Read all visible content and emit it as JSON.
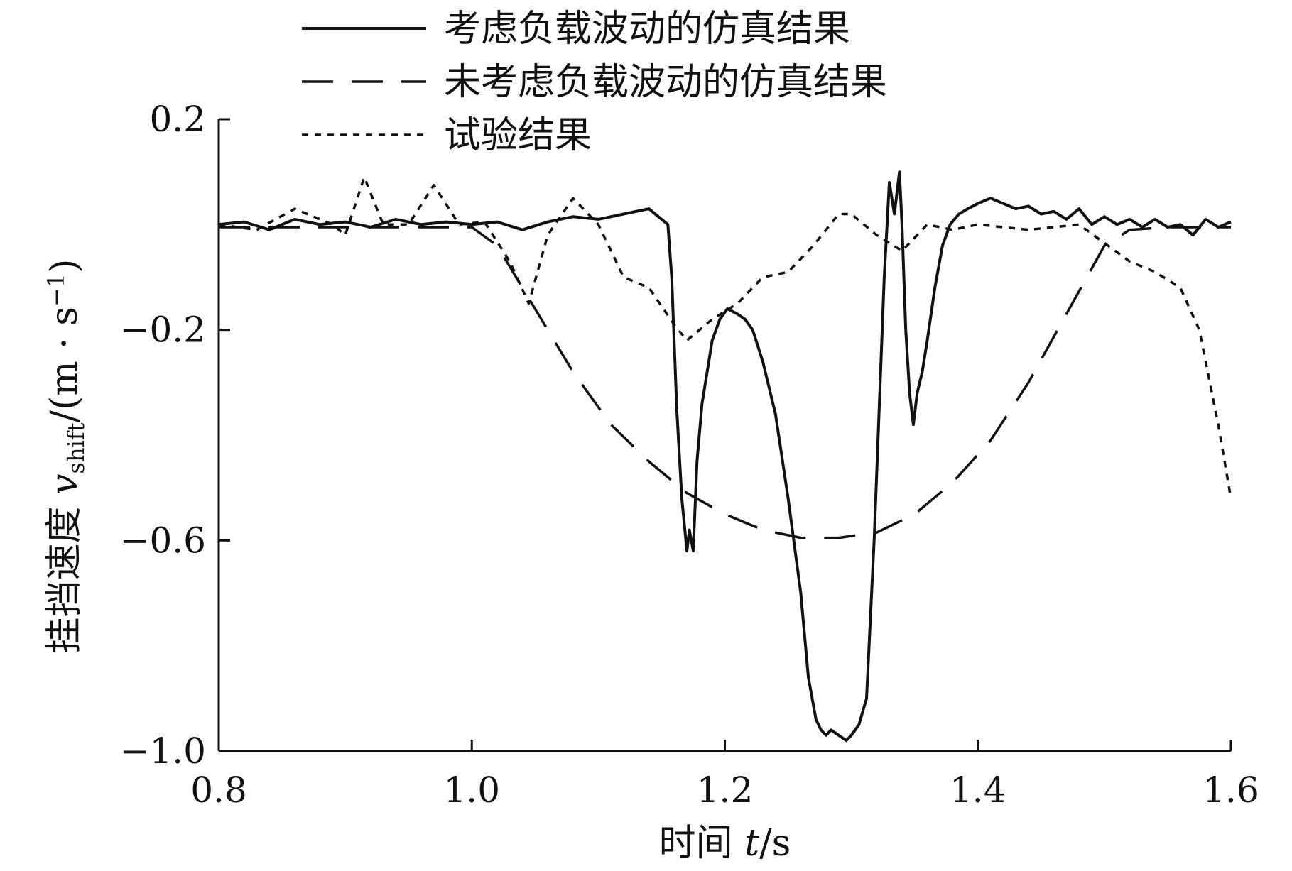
{
  "chart_data": {
    "type": "line",
    "title": "",
    "xlabel_prefix": "时间 ",
    "xlabel_var": "t",
    "xlabel_unit": "/s",
    "ylabel_prefix": "挂挡速度 ",
    "ylabel_var": "v",
    "ylabel_sub": "shift",
    "ylabel_unit": "/(m · s",
    "ylabel_sup": "−1",
    "ylabel_close": ")",
    "xlim": [
      0.8,
      1.6
    ],
    "ylim": [
      -1.0,
      0.2
    ],
    "xticks": [
      0.8,
      1.0,
      1.2,
      1.4,
      1.6
    ],
    "xtick_labels": [
      "0.8",
      "1.0",
      "1.2",
      "1.4",
      "1.6"
    ],
    "yticks": [
      0.2,
      -0.2,
      -0.6,
      -1.0
    ],
    "ytick_labels": [
      "0.2",
      "−0.2",
      "−0.6",
      "−1.0"
    ],
    "grid": false,
    "legend_position": "top",
    "series": [
      {
        "name": "考虑负载波动的仿真结果",
        "style": "solid",
        "x": [
          0.8,
          0.82,
          0.84,
          0.86,
          0.88,
          0.9,
          0.92,
          0.94,
          0.96,
          0.98,
          1.0,
          1.02,
          1.04,
          1.06,
          1.08,
          1.1,
          1.12,
          1.14,
          1.155,
          1.158,
          1.162,
          1.166,
          1.17,
          1.172,
          1.175,
          1.178,
          1.182,
          1.186,
          1.19,
          1.196,
          1.202,
          1.21,
          1.216,
          1.222,
          1.23,
          1.24,
          1.25,
          1.26,
          1.266,
          1.272,
          1.276,
          1.28,
          1.284,
          1.29,
          1.296,
          1.3,
          1.306,
          1.312,
          1.318,
          1.322,
          1.326,
          1.33,
          1.334,
          1.338,
          1.34,
          1.343,
          1.346,
          1.349,
          1.352,
          1.356,
          1.36,
          1.366,
          1.372,
          1.378,
          1.385,
          1.392,
          1.4,
          1.41,
          1.42,
          1.43,
          1.44,
          1.45,
          1.46,
          1.47,
          1.48,
          1.49,
          1.5,
          1.51,
          1.52,
          1.53,
          1.54,
          1.55,
          1.56,
          1.57,
          1.58,
          1.59,
          1.6
        ],
        "y": [
          0.0,
          0.005,
          -0.01,
          0.01,
          0.0,
          0.005,
          -0.005,
          0.01,
          0.0,
          0.005,
          0.0,
          0.005,
          -0.01,
          0.005,
          0.015,
          0.01,
          0.02,
          0.03,
          0.0,
          -0.1,
          -0.35,
          -0.52,
          -0.62,
          -0.58,
          -0.62,
          -0.45,
          -0.34,
          -0.28,
          -0.22,
          -0.18,
          -0.16,
          -0.17,
          -0.18,
          -0.2,
          -0.26,
          -0.36,
          -0.52,
          -0.7,
          -0.86,
          -0.94,
          -0.96,
          -0.97,
          -0.96,
          -0.97,
          -0.98,
          -0.97,
          -0.95,
          -0.9,
          -0.6,
          -0.35,
          -0.1,
          0.08,
          0.02,
          0.1,
          0.0,
          -0.2,
          -0.32,
          -0.38,
          -0.32,
          -0.28,
          -0.22,
          -0.12,
          -0.04,
          0.0,
          0.02,
          0.03,
          0.04,
          0.05,
          0.04,
          0.03,
          0.035,
          0.02,
          0.025,
          0.01,
          0.03,
          0.0,
          0.015,
          0.0,
          0.01,
          -0.005,
          0.01,
          -0.005,
          0.0,
          -0.02,
          0.01,
          -0.005,
          0.005
        ]
      },
      {
        "name": "未考虑负载波动的仿真结果",
        "style": "dashed",
        "x": [
          0.8,
          0.85,
          0.9,
          0.95,
          1.0,
          1.02,
          1.05,
          1.08,
          1.11,
          1.14,
          1.17,
          1.2,
          1.23,
          1.26,
          1.29,
          1.32,
          1.35,
          1.38,
          1.41,
          1.44,
          1.47,
          1.5,
          1.52,
          1.55,
          1.6
        ],
        "y": [
          -0.005,
          -0.005,
          -0.005,
          -0.005,
          -0.005,
          -0.04,
          -0.16,
          -0.28,
          -0.38,
          -0.45,
          -0.51,
          -0.55,
          -0.58,
          -0.595,
          -0.595,
          -0.585,
          -0.55,
          -0.49,
          -0.41,
          -0.3,
          -0.17,
          -0.04,
          -0.01,
          -0.005,
          -0.005
        ]
      },
      {
        "name": "试验结果",
        "style": "dotted",
        "x": [
          0.8,
          0.83,
          0.86,
          0.89,
          0.9,
          0.915,
          0.93,
          0.95,
          0.97,
          0.99,
          1.01,
          1.03,
          1.045,
          1.06,
          1.08,
          1.1,
          1.12,
          1.14,
          1.16,
          1.17,
          1.19,
          1.21,
          1.23,
          1.25,
          1.27,
          1.29,
          1.3,
          1.32,
          1.34,
          1.36,
          1.38,
          1.4,
          1.44,
          1.48,
          1.52,
          1.54,
          1.56,
          1.575,
          1.59,
          1.6
        ],
        "y": [
          0.0,
          -0.01,
          0.03,
          0.0,
          -0.02,
          0.09,
          0.0,
          0.0,
          0.075,
          0.0,
          0.005,
          -0.07,
          -0.15,
          -0.02,
          0.05,
          0.0,
          -0.1,
          -0.12,
          -0.19,
          -0.22,
          -0.18,
          -0.15,
          -0.1,
          -0.09,
          -0.04,
          0.02,
          0.02,
          -0.02,
          -0.05,
          0.0,
          -0.01,
          0.0,
          -0.01,
          0.0,
          -0.07,
          -0.09,
          -0.12,
          -0.2,
          -0.38,
          -0.52
        ]
      }
    ]
  }
}
